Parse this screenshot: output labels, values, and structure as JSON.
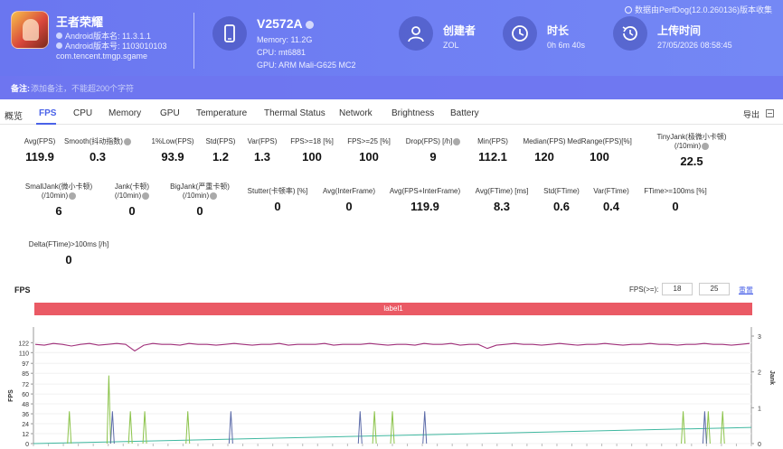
{
  "header": {
    "app": {
      "name": "王者荣耀",
      "android_version_name": "Android版本名: 11.3.1.1",
      "android_version_code": "Android版本号: 1103010103",
      "package": "com.tencent.tmgp.sgame"
    },
    "device": {
      "name": "V2572A",
      "memory": "Memory: 11.2G",
      "cpu": "CPU: mt6881",
      "gpu": "GPU: ARM Mali-G625 MC2"
    },
    "creator": {
      "title": "创建者",
      "value": "ZOL"
    },
    "duration": {
      "title": "时长",
      "value": "0h 6m 40s"
    },
    "upload": {
      "title": "上传时间",
      "value": "27/05/2026 08:58:45"
    },
    "version_note": "数据由PerfDog(12.0.260136)版本收集",
    "note_label": "备注:",
    "note_placeholder": "添加备注，不能超200个字符"
  },
  "tabs": [
    "概览",
    "FPS",
    "CPU",
    "Memory",
    "GPU",
    "Temperature",
    "Thermal Status",
    "Network",
    "Brightness",
    "Battery"
  ],
  "active_tab": "FPS",
  "export_label": "导出",
  "metrics_row1": [
    {
      "label": "Avg(FPS)",
      "value": "119.9"
    },
    {
      "label": "Smooth(抖动指数)",
      "value": "0.3",
      "help": true
    },
    {
      "label": "1%Low(FPS)",
      "value": "93.9"
    },
    {
      "label": "Std(FPS)",
      "value": "1.2"
    },
    {
      "label": "Var(FPS)",
      "value": "1.3"
    },
    {
      "label": "FPS>=18 [%]",
      "value": "100"
    },
    {
      "label": "FPS>=25 [%]",
      "value": "100"
    },
    {
      "label": "Drop(FPS) [/h]",
      "value": "9",
      "help": true
    },
    {
      "label": "Min(FPS)",
      "value": "112.1"
    },
    {
      "label": "Median(FPS)",
      "value": "120"
    },
    {
      "label": "MedRange(FPS)[%]",
      "value": "100"
    },
    {
      "label": "TinyJank(极微小卡顿)",
      "label2": "(/10min)",
      "value": "22.5",
      "help": true
    }
  ],
  "metrics_row2": [
    {
      "label": "SmallJank(微小卡顿)",
      "label2": "(/10min)",
      "value": "6",
      "help": true
    },
    {
      "label": "Jank(卡顿)",
      "label2": "(/10min)",
      "value": "0",
      "help": true
    },
    {
      "label": "BigJank(严重卡顿)",
      "label2": "(/10min)",
      "value": "0",
      "help": true
    },
    {
      "label": "Stutter(卡顿率) [%]",
      "value": "0"
    },
    {
      "label": "Avg(InterFrame)",
      "value": "0"
    },
    {
      "label": "Avg(FPS+InterFrame)",
      "value": "119.9"
    },
    {
      "label": "Avg(FTime) [ms]",
      "value": "8.3"
    },
    {
      "label": "Std(FTime)",
      "value": "0.6"
    },
    {
      "label": "Var(FTime)",
      "value": "0.4"
    },
    {
      "label": "FTime>=100ms [%]",
      "value": "0"
    }
  ],
  "metrics_row3": [
    {
      "label": "Delta(FTime)>100ms [/h]",
      "value": "0"
    }
  ],
  "chart": {
    "title": "FPS",
    "threshold_label": "FPS(>=):",
    "threshold1": "18",
    "threshold2": "25",
    "threshold_link": "重置",
    "label_bar": "label1"
  },
  "chart_data": {
    "type": "line",
    "y_ticks": [
      0,
      12,
      24,
      36,
      48,
      60,
      72,
      85,
      97,
      110,
      122
    ],
    "y2_ticks": [
      0,
      1,
      2,
      3
    ],
    "ylabel": "FPS",
    "y2label": "Jank",
    "ylim": [
      0,
      130
    ],
    "y2lim": [
      0,
      3
    ],
    "series": [
      {
        "name": "FPS",
        "color": "#a0307a"
      },
      {
        "name": "TinyJank",
        "color": "#8bc34a"
      },
      {
        "name": "SmallJank",
        "color": "#5b6aa8"
      },
      {
        "name": "Trend",
        "color": "#3fb8a0"
      }
    ],
    "fps_values": [
      120,
      119,
      121,
      120,
      118,
      120,
      121,
      119,
      120,
      121,
      120,
      112,
      119,
      121,
      120,
      120,
      119,
      121,
      120,
      120,
      119,
      120,
      121,
      120,
      119,
      120,
      120,
      121,
      119,
      120,
      120,
      120,
      121,
      119,
      120,
      120,
      120,
      121,
      120,
      119,
      120,
      120,
      119,
      121,
      120,
      120,
      121,
      119,
      120,
      120,
      115,
      119,
      120,
      121,
      120,
      120,
      119,
      120,
      121,
      120,
      119,
      120,
      120,
      121,
      120,
      119,
      120,
      120,
      121,
      120,
      120,
      119,
      120,
      120,
      121,
      120,
      120,
      119,
      120,
      121
    ],
    "tinyjank_spikes": [
      {
        "x": 0.05,
        "v": 0.9
      },
      {
        "x": 0.105,
        "v": 1.9
      },
      {
        "x": 0.135,
        "v": 0.9
      },
      {
        "x": 0.155,
        "v": 0.9
      },
      {
        "x": 0.215,
        "v": 0.9
      },
      {
        "x": 0.475,
        "v": 0.9
      },
      {
        "x": 0.5,
        "v": 0.9
      },
      {
        "x": 0.905,
        "v": 0.9
      },
      {
        "x": 0.94,
        "v": 0.9
      },
      {
        "x": 0.96,
        "v": 0.9
      }
    ],
    "smalljank_spikes": [
      {
        "x": 0.11,
        "v": 0.9
      },
      {
        "x": 0.275,
        "v": 0.9
      },
      {
        "x": 0.455,
        "v": 0.9
      },
      {
        "x": 0.545,
        "v": 0.9
      },
      {
        "x": 0.935,
        "v": 0.9
      }
    ],
    "trend": [
      0,
      0.45
    ]
  }
}
